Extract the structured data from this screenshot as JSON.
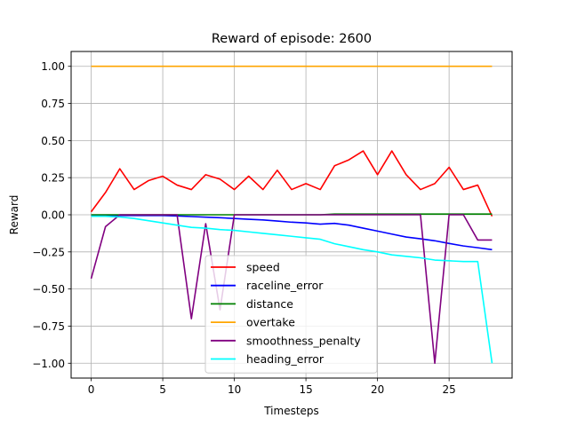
{
  "chart_data": {
    "type": "line",
    "title": "Reward of episode: 2600",
    "xlabel": "Timesteps",
    "ylabel": "Reward",
    "xlim": [
      -1.4,
      29.4
    ],
    "ylim": [
      -1.1,
      1.1
    ],
    "grid": true,
    "legend_position": "lower-center",
    "xticks": [
      0,
      5,
      10,
      15,
      20,
      25
    ],
    "xtick_labels": [
      "0",
      "5",
      "10",
      "15",
      "20",
      "25"
    ],
    "yticks": [
      -1.0,
      -0.75,
      -0.5,
      -0.25,
      0.0,
      0.25,
      0.5,
      0.75,
      1.0
    ],
    "ytick_labels": [
      "−1.00",
      "−0.75",
      "−0.50",
      "−0.25",
      "0.00",
      "0.25",
      "0.50",
      "0.75",
      "1.00"
    ],
    "x": [
      0,
      1,
      2,
      3,
      4,
      5,
      6,
      7,
      8,
      9,
      10,
      11,
      12,
      13,
      14,
      15,
      16,
      17,
      18,
      19,
      20,
      21,
      22,
      23,
      24,
      25,
      26,
      27,
      28
    ],
    "series": [
      {
        "name": "speed",
        "color": "#ff0000",
        "values": [
          0.02,
          0.15,
          0.31,
          0.17,
          0.23,
          0.26,
          0.2,
          0.17,
          0.27,
          0.24,
          0.17,
          0.26,
          0.17,
          0.3,
          0.17,
          0.21,
          0.17,
          0.33,
          0.37,
          0.43,
          0.27,
          0.43,
          0.27,
          0.17,
          0.21,
          0.32,
          0.17,
          0.2,
          -0.01
        ]
      },
      {
        "name": "raceline_error",
        "color": "#0000ff",
        "values": [
          -0.005,
          -0.005,
          -0.005,
          -0.005,
          -0.005,
          -0.005,
          -0.008,
          -0.012,
          -0.016,
          -0.02,
          -0.025,
          -0.03,
          -0.035,
          -0.042,
          -0.05,
          -0.055,
          -0.063,
          -0.058,
          -0.07,
          -0.09,
          -0.11,
          -0.13,
          -0.15,
          -0.162,
          -0.175,
          -0.193,
          -0.21,
          -0.222,
          -0.235
        ]
      },
      {
        "name": "distance",
        "color": "#008000",
        "values": [
          0,
          0,
          0,
          0,
          0,
          0,
          0,
          0,
          0,
          0,
          0,
          0,
          0,
          0,
          0,
          0,
          0,
          0.005,
          0.005,
          0.005,
          0.005,
          0.005,
          0.005,
          0.005,
          0.005,
          0.005,
          0.005,
          0.005,
          0.005
        ]
      },
      {
        "name": "overtake",
        "color": "#ffa500",
        "values": [
          1,
          1,
          1,
          1,
          1,
          1,
          1,
          1,
          1,
          1,
          1,
          1,
          1,
          1,
          1,
          1,
          1,
          1,
          1,
          1,
          1,
          1,
          1,
          1,
          1,
          1,
          1,
          1,
          1
        ]
      },
      {
        "name": "smoothness_penalty",
        "color": "#800080",
        "values": [
          -0.43,
          -0.08,
          0,
          0,
          0,
          0,
          0,
          -0.7,
          -0.06,
          -0.64,
          0,
          0,
          0,
          0,
          0,
          0,
          0,
          0,
          0,
          0,
          0,
          0,
          0,
          0,
          -1.0,
          0,
          0,
          -0.17,
          -0.17
        ]
      },
      {
        "name": "heading_error",
        "color": "#00ffff",
        "values": [
          -0.01,
          -0.01,
          -0.015,
          -0.025,
          -0.04,
          -0.055,
          -0.07,
          -0.085,
          -0.09,
          -0.1,
          -0.105,
          -0.115,
          -0.125,
          -0.135,
          -0.145,
          -0.155,
          -0.165,
          -0.195,
          -0.215,
          -0.235,
          -0.25,
          -0.27,
          -0.28,
          -0.29,
          -0.305,
          -0.31,
          -0.315,
          -0.315,
          -1.0
        ]
      }
    ]
  }
}
